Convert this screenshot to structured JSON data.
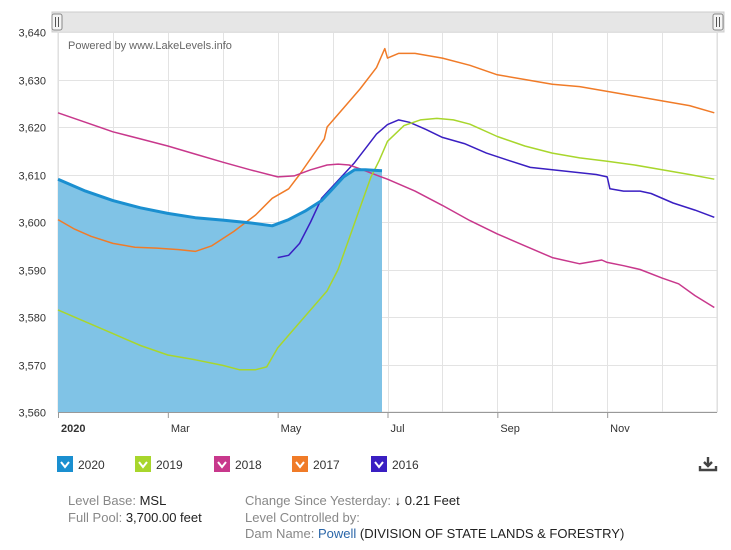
{
  "chart_data": {
    "type": "line",
    "credit": "Powered by www.LakeLevels.info",
    "x_ticks": [
      {
        "month": 1,
        "label": "2020"
      },
      {
        "month": 3,
        "label": "Mar"
      },
      {
        "month": 5,
        "label": "May"
      },
      {
        "month": 7,
        "label": "Jul"
      },
      {
        "month": 9,
        "label": "Sep"
      },
      {
        "month": 11,
        "label": "Nov"
      }
    ],
    "xlim": [
      1,
      13
    ],
    "ylim": [
      3560,
      3640
    ],
    "y_ticks": [
      {
        "value": 3560,
        "label": "3,560"
      },
      {
        "value": 3570,
        "label": "3,570"
      },
      {
        "value": 3580,
        "label": "3,580"
      },
      {
        "value": 3590,
        "label": "3,590"
      },
      {
        "value": 3600,
        "label": "3,600"
      },
      {
        "value": 3610,
        "label": "3,610"
      },
      {
        "value": 3620,
        "label": "3,620"
      },
      {
        "value": 3630,
        "label": "3,630"
      },
      {
        "value": 3640,
        "label": "3,640"
      }
    ],
    "grid": true,
    "legend_position": "bottom",
    "series": [
      {
        "name": "2020",
        "color": "#1a8fd0",
        "fill": "#80c3e6",
        "area": true,
        "x": [
          1.0,
          1.5,
          2.0,
          2.5,
          3.0,
          3.5,
          4.0,
          4.5,
          4.9,
          5.2,
          5.5,
          5.8,
          6.0,
          6.2,
          6.4,
          6.6,
          6.9
        ],
        "y": [
          3609,
          3606.5,
          3604.5,
          3603,
          3601.8,
          3600.9,
          3600.4,
          3599.8,
          3599.2,
          3600.5,
          3602.3,
          3604.5,
          3607,
          3609.5,
          3611,
          3611,
          3610.8
        ]
      },
      {
        "name": "2019",
        "color": "#a8d62c",
        "x": [
          1.0,
          1.5,
          2.0,
          2.5,
          3.0,
          3.5,
          4.0,
          4.3,
          4.6,
          4.8,
          5.0,
          5.3,
          5.6,
          5.9,
          6.1,
          6.3,
          6.5,
          6.7,
          6.85,
          7.0,
          7.3,
          7.6,
          7.9,
          8.2,
          8.5,
          9.0,
          9.5,
          10.0,
          10.5,
          11.0,
          11.5,
          12.0,
          12.5,
          12.95
        ],
        "y": [
          3581.5,
          3579,
          3576.5,
          3574,
          3572,
          3571,
          3569.8,
          3568.9,
          3568.9,
          3569.5,
          3573.5,
          3577.5,
          3581.5,
          3585.5,
          3590,
          3596.5,
          3603,
          3609.5,
          3613,
          3617,
          3620.3,
          3621.5,
          3621.8,
          3621.5,
          3620.6,
          3618,
          3616,
          3614.5,
          3613.5,
          3612.8,
          3612,
          3611,
          3610,
          3609
        ]
      },
      {
        "name": "2018",
        "color": "#c8388c",
        "x": [
          1.0,
          1.5,
          2.0,
          2.5,
          3.0,
          3.5,
          4.0,
          4.5,
          5.0,
          5.3,
          5.6,
          5.9,
          6.1,
          6.3,
          6.5,
          6.7,
          7.0,
          7.5,
          8.0,
          8.5,
          9.0,
          9.5,
          10.0,
          10.5,
          10.9,
          11.0,
          11.3,
          11.6,
          12.0,
          12.3,
          12.6,
          12.95
        ],
        "y": [
          3623,
          3621,
          3619,
          3617.5,
          3616,
          3614.3,
          3612.6,
          3611,
          3609.5,
          3609.7,
          3611,
          3612,
          3612.2,
          3612,
          3611.2,
          3610.3,
          3609,
          3606.5,
          3603.5,
          3600.3,
          3597.5,
          3595,
          3592.5,
          3591.2,
          3592,
          3591.5,
          3590.8,
          3590,
          3588.2,
          3587,
          3584.5,
          3582
        ]
      },
      {
        "name": "2017",
        "color": "#f07b28",
        "x": [
          1.0,
          1.3,
          1.6,
          2.0,
          2.4,
          2.8,
          3.2,
          3.5,
          3.8,
          4.2,
          4.6,
          4.9,
          5.2,
          5.4,
          5.7,
          5.85,
          5.9,
          6.2,
          6.5,
          6.8,
          6.95,
          7.0,
          7.2,
          7.5,
          8.0,
          8.5,
          9.0,
          9.5,
          10.0,
          10.5,
          11.0,
          11.5,
          12.0,
          12.5,
          12.95
        ],
        "y": [
          3600.5,
          3598.5,
          3597,
          3595.5,
          3594.7,
          3594.5,
          3594.2,
          3593.8,
          3595,
          3598,
          3601.5,
          3605,
          3607,
          3610,
          3615,
          3617.5,
          3620,
          3624,
          3628,
          3632.5,
          3636.5,
          3634.5,
          3635.5,
          3635.5,
          3634.5,
          3633,
          3631,
          3630,
          3629,
          3628.5,
          3627.5,
          3626.5,
          3625.5,
          3624.5,
          3623
        ]
      },
      {
        "name": "2016",
        "color": "#3a1fc2",
        "x": [
          5.0,
          5.2,
          5.4,
          5.6,
          5.8,
          6.0,
          6.2,
          6.4,
          6.6,
          6.8,
          7.0,
          7.2,
          7.4,
          7.7,
          8.0,
          8.4,
          8.8,
          9.2,
          9.6,
          10.0,
          10.4,
          10.8,
          11.0,
          11.05,
          11.3,
          11.6,
          11.8,
          12.2,
          12.6,
          12.95
        ],
        "y": [
          3592.5,
          3593,
          3595.5,
          3600,
          3605,
          3607.5,
          3610,
          3612.5,
          3615.5,
          3618.5,
          3620.5,
          3621.5,
          3621,
          3619.5,
          3617.8,
          3616.5,
          3614.5,
          3613,
          3611.5,
          3611,
          3610.5,
          3610,
          3609.5,
          3607,
          3606.5,
          3606.5,
          3606,
          3604,
          3602.5,
          3601
        ]
      }
    ]
  },
  "download_icon": "download-icon",
  "info": {
    "level_base_label": "Level Base:",
    "level_base_value": "MSL",
    "full_pool_label": "Full Pool:",
    "full_pool_value": "3,700.00 feet",
    "change_label": "Change Since Yesterday:",
    "change_arrow": "↓",
    "change_value": "0.21 Feet",
    "controlled_label": "Level Controlled by:",
    "dam_label": "Dam Name:",
    "dam_link": "Powell",
    "dam_agency": "(DIVISION OF STATE LANDS & FORESTRY)"
  }
}
